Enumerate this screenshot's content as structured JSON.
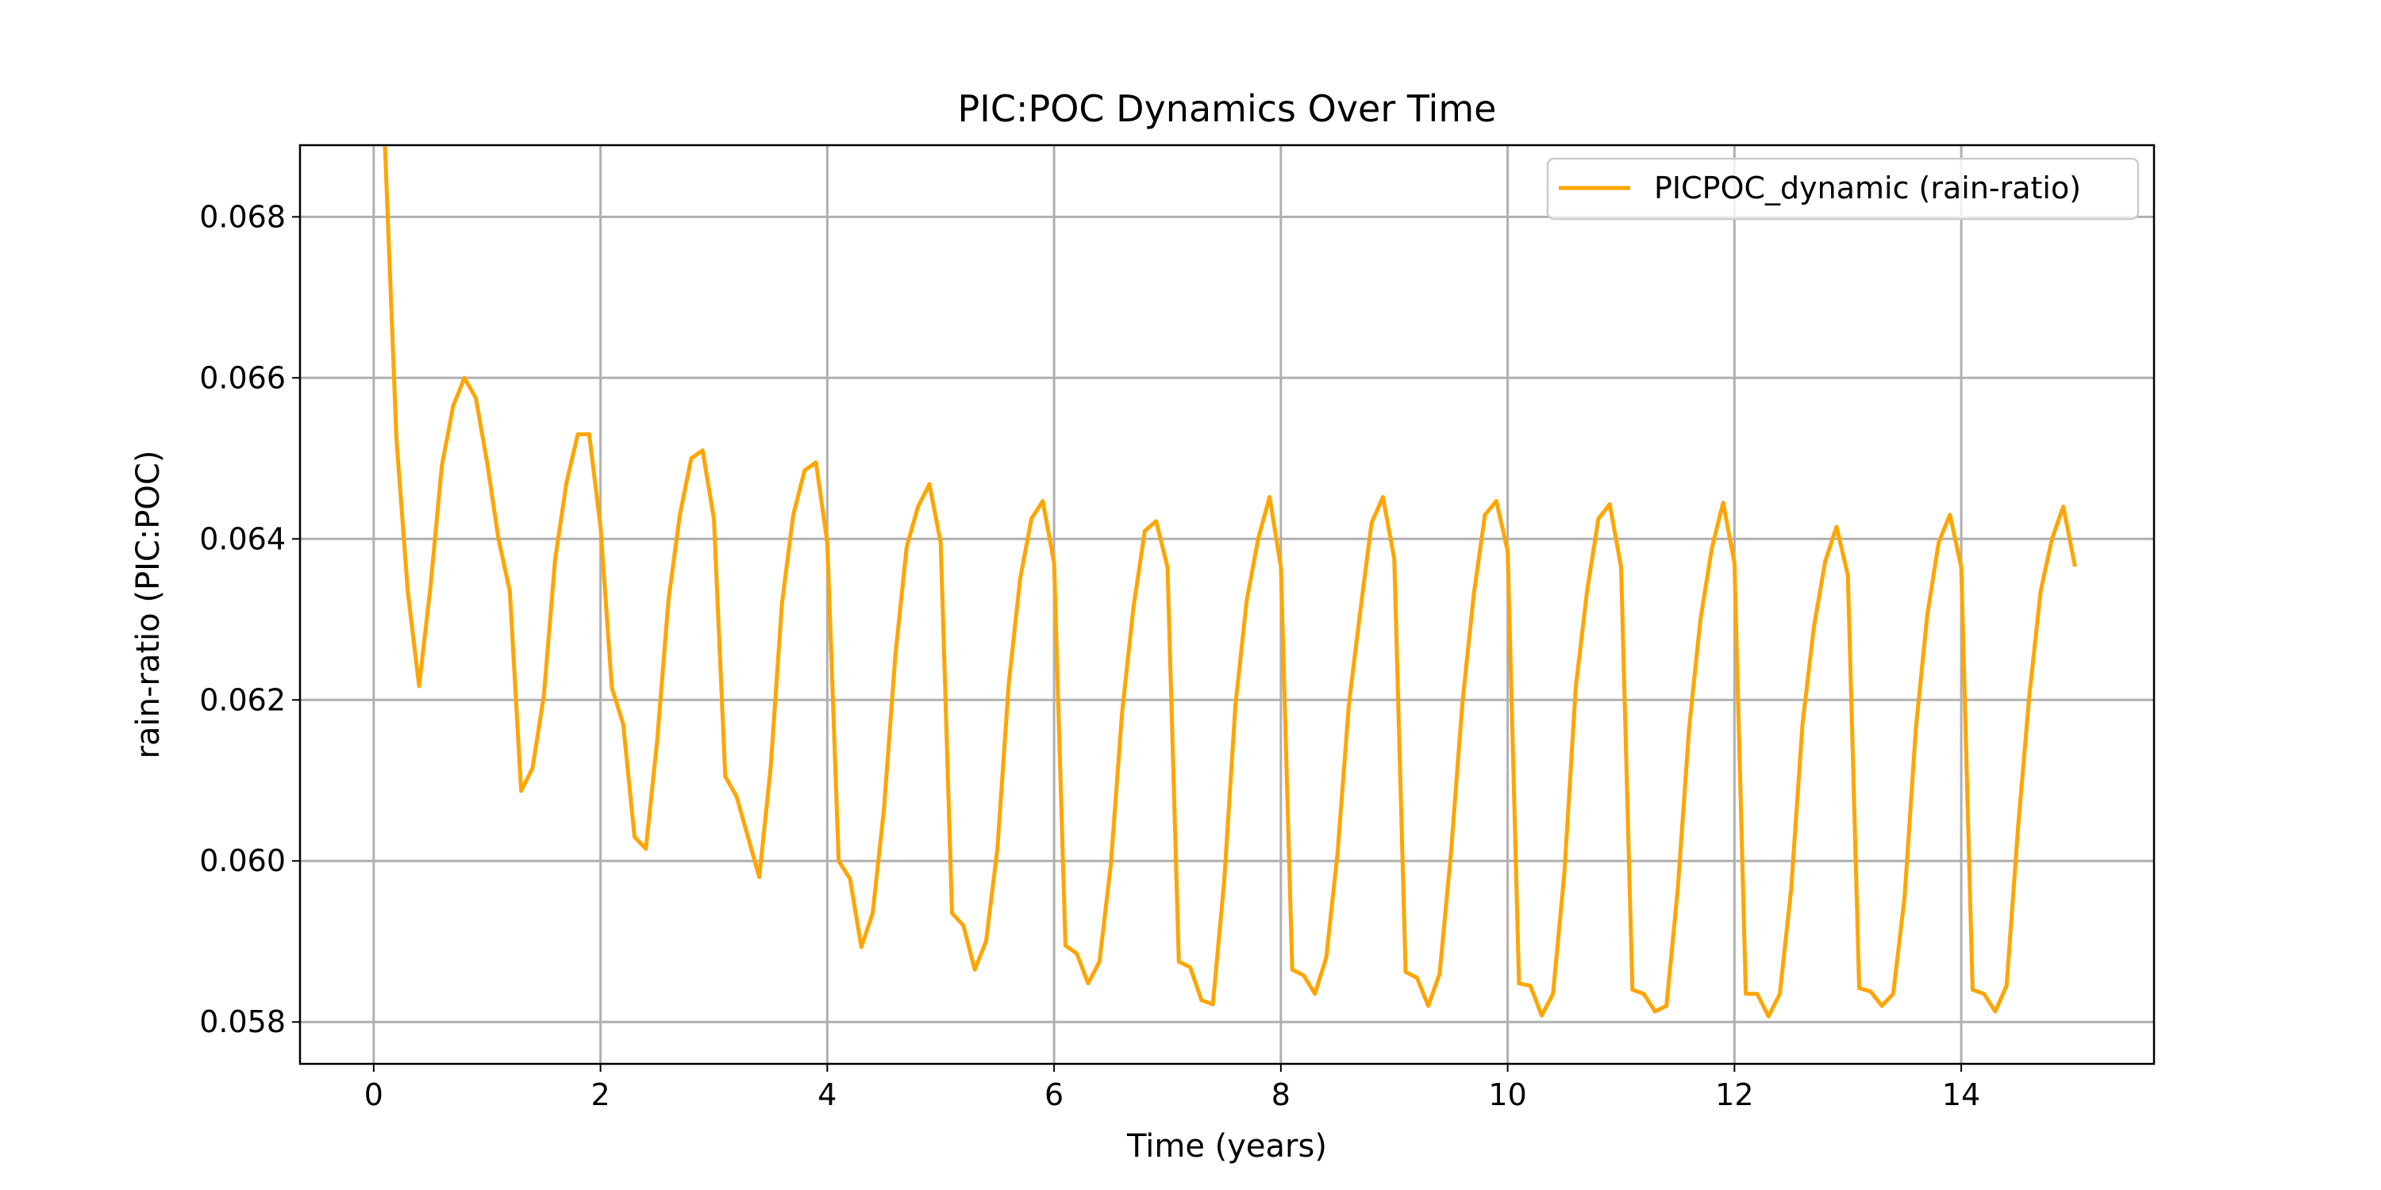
{
  "chart_data": {
    "type": "line",
    "title": "PIC:POC Dynamics Over Time",
    "xlabel": "Time (years)",
    "ylabel": "rain-ratio (PIC:POC)",
    "xlim": [
      -0.65,
      15.7
    ],
    "ylim": [
      0.05748,
      0.06889
    ],
    "xticks": [
      0,
      2,
      4,
      6,
      8,
      10,
      12,
      14
    ],
    "xtick_labels": [
      "0",
      "2",
      "4",
      "6",
      "8",
      "10",
      "12",
      "14"
    ],
    "yticks": [
      0.058,
      0.06,
      0.062,
      0.064,
      0.066,
      0.068
    ],
    "ytick_labels": [
      "0.058",
      "0.060",
      "0.062",
      "0.064",
      "0.066",
      "0.068"
    ],
    "grid": true,
    "legend_position": "top-right",
    "colors": {
      "series": "#ffa500"
    },
    "series": [
      {
        "name": "PICPOC_dynamic (rain-ratio)",
        "x": [
          0.1,
          0.2,
          0.3,
          0.4,
          0.5,
          0.6,
          0.7,
          0.8,
          0.9,
          1.0,
          1.1,
          1.2,
          1.3,
          1.4,
          1.5,
          1.6,
          1.7,
          1.8,
          1.9,
          2.0,
          2.1,
          2.2,
          2.3,
          2.4,
          2.5,
          2.6,
          2.7,
          2.8,
          2.9,
          3.0,
          3.1,
          3.2,
          3.3,
          3.4,
          3.5,
          3.6,
          3.7,
          3.8,
          3.9,
          4.0,
          4.1,
          4.2,
          4.3,
          4.4,
          4.5,
          4.6,
          4.7,
          4.8,
          4.9,
          5.0,
          5.1,
          5.2,
          5.3,
          5.4,
          5.5,
          5.6,
          5.7,
          5.8,
          5.9,
          6.0,
          6.1,
          6.2,
          6.3,
          6.4,
          6.5,
          6.6,
          6.7,
          6.8,
          6.9,
          7.0,
          7.1,
          7.2,
          7.3,
          7.4,
          7.5,
          7.6,
          7.7,
          7.8,
          7.9,
          8.0,
          8.1,
          8.2,
          8.3,
          8.4,
          8.5,
          8.6,
          8.7,
          8.8,
          8.9,
          9.0,
          9.1,
          9.2,
          9.3,
          9.4,
          9.5,
          9.6,
          9.7,
          9.8,
          9.9,
          10.0,
          10.1,
          10.2,
          10.3,
          10.4,
          10.5,
          10.6,
          10.7,
          10.8,
          10.9,
          11.0,
          11.1,
          11.2,
          11.3,
          11.4,
          11.5,
          11.6,
          11.7,
          11.8,
          11.9,
          12.0,
          12.1,
          12.2,
          12.3,
          12.4,
          12.5,
          12.6,
          12.7,
          12.8,
          12.9,
          13.0,
          13.1,
          13.2,
          13.3,
          13.4,
          13.5,
          13.6,
          13.7,
          13.8,
          13.9,
          14.0,
          14.1,
          14.2,
          14.3,
          14.4,
          14.5,
          14.6,
          14.7,
          14.8,
          14.9,
          15.0
        ],
        "y": [
          0.06885,
          0.06525,
          0.06335,
          0.06217,
          0.0634,
          0.0649,
          0.06565,
          0.066,
          0.06575,
          0.06495,
          0.064,
          0.06335,
          0.06087,
          0.06115,
          0.06205,
          0.06375,
          0.0647,
          0.0653,
          0.0653,
          0.06415,
          0.06215,
          0.0617,
          0.0603,
          0.06015,
          0.0615,
          0.06325,
          0.0643,
          0.065,
          0.0651,
          0.06425,
          0.06105,
          0.0608,
          0.0603,
          0.0598,
          0.06115,
          0.0632,
          0.0643,
          0.06485,
          0.06495,
          0.06395,
          0.06,
          0.05978,
          0.05893,
          0.05935,
          0.06065,
          0.06255,
          0.0639,
          0.0644,
          0.06468,
          0.06395,
          0.05935,
          0.0592,
          0.05865,
          0.059,
          0.06015,
          0.0622,
          0.0635,
          0.06425,
          0.06447,
          0.0637,
          0.05895,
          0.05885,
          0.05848,
          0.05875,
          0.05995,
          0.06185,
          0.06315,
          0.0641,
          0.06422,
          0.06365,
          0.05875,
          0.05868,
          0.05827,
          0.05822,
          0.05975,
          0.06195,
          0.06325,
          0.064,
          0.06452,
          0.06365,
          0.05865,
          0.05858,
          0.05835,
          0.0588,
          0.0601,
          0.06195,
          0.0631,
          0.0642,
          0.06452,
          0.06375,
          0.05862,
          0.05855,
          0.0582,
          0.0586,
          0.0601,
          0.06195,
          0.0633,
          0.0643,
          0.06447,
          0.06385,
          0.05848,
          0.05845,
          0.05808,
          0.05835,
          0.05985,
          0.06215,
          0.06335,
          0.06425,
          0.06443,
          0.06365,
          0.0584,
          0.05835,
          0.05813,
          0.0582,
          0.05965,
          0.06165,
          0.063,
          0.06388,
          0.06445,
          0.0637,
          0.05835,
          0.05835,
          0.05807,
          0.05835,
          0.05965,
          0.0617,
          0.0629,
          0.06372,
          0.06415,
          0.06355,
          0.05842,
          0.05838,
          0.0582,
          0.05835,
          0.05955,
          0.06165,
          0.06305,
          0.06395,
          0.0643,
          0.06365,
          0.0584,
          0.05835,
          0.05813,
          0.05845,
          0.0604,
          0.06205,
          0.06335,
          0.064,
          0.0644,
          0.06368
        ]
      }
    ]
  }
}
